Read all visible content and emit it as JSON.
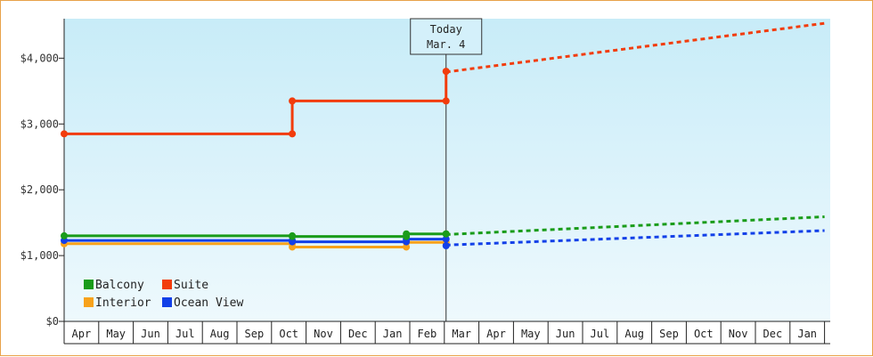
{
  "chart_data": {
    "type": "line",
    "ylim": [
      0,
      4600
    ],
    "yticks": [
      0,
      1000,
      2000,
      3000,
      4000
    ],
    "ytick_labels": [
      "$0",
      "$1,000",
      "$2,000",
      "$3,000",
      "$4,000"
    ],
    "x_months": [
      "Apr",
      "May",
      "Jun",
      "Jul",
      "Aug",
      "Sep",
      "Oct",
      "Nov",
      "Dec",
      "Jan",
      "Feb",
      "Mar",
      "Apr",
      "May",
      "Jun",
      "Jul",
      "Aug",
      "Sep",
      "Oct",
      "Nov",
      "Dec",
      "Jan"
    ],
    "today": {
      "line1": "Today",
      "line2": "Mar. 4",
      "x_month_index": 11.05
    },
    "series": [
      {
        "name": "Balcony",
        "color": "#1a9c1a",
        "steps": [
          [
            0,
            1300
          ],
          [
            6.6,
            1290
          ],
          [
            9.9,
            1330
          ],
          [
            11.05,
            1330
          ]
        ],
        "forecast": [
          [
            11.05,
            1320
          ],
          [
            22,
            1590
          ]
        ]
      },
      {
        "name": "Suite",
        "color": "#f23c0c",
        "steps": [
          [
            0,
            2850
          ],
          [
            6.6,
            3350
          ],
          [
            11.05,
            3800
          ]
        ],
        "forecast": [
          [
            11.05,
            3790
          ],
          [
            22,
            4530
          ]
        ]
      },
      {
        "name": "Interior",
        "color": "#f7a21b",
        "steps": [
          [
            0,
            1180
          ],
          [
            6.6,
            1130
          ],
          [
            9.9,
            1200
          ],
          [
            11.05,
            1200
          ]
        ],
        "forecast": []
      },
      {
        "name": "Ocean View",
        "color": "#1240e8",
        "steps": [
          [
            0,
            1230
          ],
          [
            6.6,
            1210
          ],
          [
            9.9,
            1250
          ],
          [
            11.05,
            1150
          ]
        ],
        "forecast": [
          [
            11.05,
            1160
          ],
          [
            22,
            1380
          ]
        ]
      }
    ],
    "legend_order": [
      "Balcony",
      "Suite",
      "Interior",
      "Ocean View"
    ],
    "legend_position": "bottom-left",
    "grid": false
  }
}
